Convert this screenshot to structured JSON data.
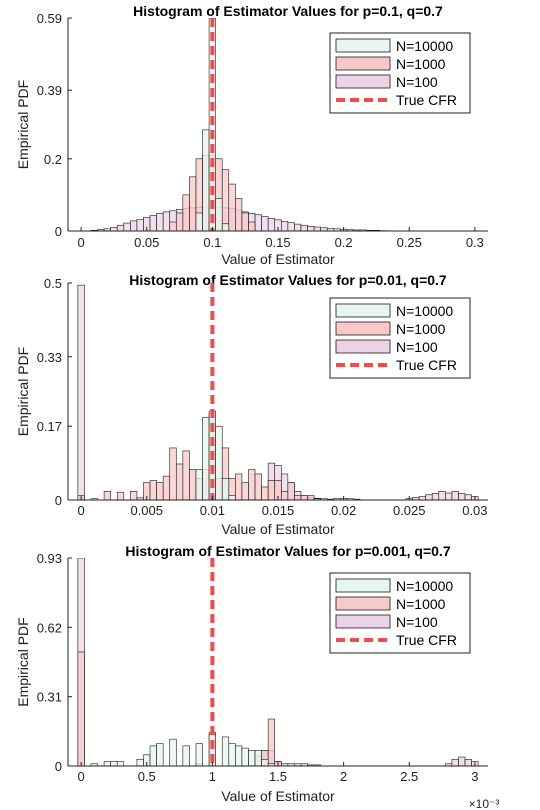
{
  "figure": {
    "background": "#ffffff",
    "colors": {
      "n10000": "#e6f5ef",
      "n1000": "#f8c9c9",
      "n100": "#ecd4e6",
      "true_cfr": "#f24b4b",
      "edge": "#1a1a1a"
    }
  },
  "chart_data": [
    {
      "type": "bar",
      "title": "Histogram of Estimator Values for p=0.1, q=0.7",
      "xlabel": "Value of Estimator",
      "ylabel": "Empirical PDF",
      "xlim": [
        -0.01,
        0.31
      ],
      "ylim": [
        0,
        0.59
      ],
      "x_ticks": [
        0,
        0.05,
        0.1,
        0.15,
        0.2,
        0.25,
        0.3
      ],
      "x_tick_labels": [
        "0",
        "0.05",
        "0.1",
        "0.15",
        "0.2",
        "0.25",
        "0.3"
      ],
      "y_ticks": [
        0,
        0.2,
        0.39,
        0.59
      ],
      "y_tick_labels": [
        "0",
        "0.2",
        "0.39",
        "0.59"
      ],
      "exponent_label": "",
      "legend_position": "top-right",
      "true_cfr": 0.1,
      "series": [
        {
          "name": "N=100",
          "bin_width": 0.005,
          "bins": [
            [
              0.01,
              0.002
            ],
            [
              0.015,
              0.004
            ],
            [
              0.02,
              0.006
            ],
            [
              0.025,
              0.01
            ],
            [
              0.03,
              0.016
            ],
            [
              0.035,
              0.022
            ],
            [
              0.04,
              0.028
            ],
            [
              0.045,
              0.032
            ],
            [
              0.05,
              0.038
            ],
            [
              0.055,
              0.043
            ],
            [
              0.06,
              0.049
            ],
            [
              0.065,
              0.053
            ],
            [
              0.07,
              0.056
            ],
            [
              0.075,
              0.06
            ],
            [
              0.08,
              0.062
            ],
            [
              0.085,
              0.064
            ],
            [
              0.09,
              0.066
            ],
            [
              0.095,
              0.067
            ],
            [
              0.1,
              0.069
            ],
            [
              0.105,
              0.066
            ],
            [
              0.11,
              0.064
            ],
            [
              0.115,
              0.062
            ],
            [
              0.12,
              0.058
            ],
            [
              0.125,
              0.053
            ],
            [
              0.13,
              0.049
            ],
            [
              0.135,
              0.045
            ],
            [
              0.14,
              0.04
            ],
            [
              0.145,
              0.035
            ],
            [
              0.15,
              0.031
            ],
            [
              0.155,
              0.027
            ],
            [
              0.16,
              0.023
            ],
            [
              0.165,
              0.019
            ],
            [
              0.17,
              0.016
            ],
            [
              0.175,
              0.013
            ],
            [
              0.18,
              0.011
            ],
            [
              0.185,
              0.009
            ],
            [
              0.19,
              0.007
            ],
            [
              0.195,
              0.006
            ],
            [
              0.2,
              0.005
            ],
            [
              0.205,
              0.004
            ],
            [
              0.21,
              0.003
            ],
            [
              0.215,
              0.003
            ],
            [
              0.22,
              0.002
            ],
            [
              0.225,
              0.002
            ],
            [
              0.23,
              0.001
            ]
          ]
        },
        {
          "name": "N=1000",
          "bin_width": 0.005,
          "bins": [
            [
              0.07,
              0.025
            ],
            [
              0.075,
              0.05
            ],
            [
              0.08,
              0.1
            ],
            [
              0.085,
              0.15
            ],
            [
              0.09,
              0.2
            ],
            [
              0.095,
              0.21
            ],
            [
              0.1,
              0.21
            ],
            [
              0.105,
              0.2
            ],
            [
              0.11,
              0.17
            ],
            [
              0.115,
              0.13
            ],
            [
              0.12,
              0.09
            ],
            [
              0.125,
              0.05
            ],
            [
              0.13,
              0.025
            ]
          ]
        },
        {
          "name": "N=10000",
          "bin_width": 0.005,
          "bins": [
            [
              0.09,
              0.05
            ],
            [
              0.095,
              0.28
            ],
            [
              0.1,
              0.59
            ],
            [
              0.105,
              0.09
            ],
            [
              0.11,
              0.02
            ]
          ]
        }
      ],
      "legend": [
        "N=10000",
        "N=1000",
        "N=100",
        "True CFR"
      ]
    },
    {
      "type": "bar",
      "title": "Histogram of Estimator Values for p=0.01, q=0.7",
      "xlabel": "Value of Estimator",
      "ylabel": "Empirical PDF",
      "xlim": [
        -0.001,
        0.031
      ],
      "ylim": [
        0,
        0.5
      ],
      "x_ticks": [
        0,
        0.005,
        0.01,
        0.015,
        0.02,
        0.025,
        0.03
      ],
      "x_tick_labels": [
        "0",
        "0.005",
        "0.01",
        "0.015",
        "0.02",
        "0.025",
        "0.03"
      ],
      "y_ticks": [
        0,
        0.17,
        0.33,
        0.5
      ],
      "y_tick_labels": [
        "0",
        "0.17",
        "0.33",
        "0.5"
      ],
      "exponent_label": "",
      "legend_position": "top-right",
      "true_cfr": 0.01,
      "series": [
        {
          "name": "N=100",
          "bin_width": 0.0005,
          "bins": [
            [
              0,
              0.495
            ],
            [
              0.01,
              0.18
            ],
            [
              0.0145,
              0.085
            ],
            [
              0.015,
              0.08
            ],
            [
              0.0155,
              0.06
            ],
            [
              0.016,
              0.04
            ],
            [
              0.0165,
              0.02
            ],
            [
              0.017,
              0.01
            ],
            [
              0.0175,
              0.006
            ],
            [
              0.018,
              0.004
            ],
            [
              0.0185,
              0.003
            ],
            [
              0.019,
              0.002
            ],
            [
              0.0195,
              0.004
            ],
            [
              0.02,
              0.004
            ],
            [
              0.0205,
              0.003
            ],
            [
              0.021,
              0.002
            ],
            [
              0.025,
              0.003
            ],
            [
              0.0255,
              0.006
            ],
            [
              0.026,
              0.008
            ],
            [
              0.0265,
              0.012
            ],
            [
              0.027,
              0.015
            ],
            [
              0.0275,
              0.02
            ],
            [
              0.028,
              0.016
            ],
            [
              0.0285,
              0.02
            ],
            [
              0.029,
              0.015
            ],
            [
              0.0295,
              0.012
            ],
            [
              0.03,
              0.008
            ]
          ]
        },
        {
          "name": "N=1000",
          "bin_width": 0.0005,
          "bins": [
            [
              0,
              0.01
            ],
            [
              0.001,
              0.003
            ],
            [
              0.002,
              0.02
            ],
            [
              0.003,
              0.018
            ],
            [
              0.004,
              0.02
            ],
            [
              0.0045,
              0.005
            ],
            [
              0.005,
              0.04
            ],
            [
              0.0055,
              0.045
            ],
            [
              0.006,
              0.04
            ],
            [
              0.0065,
              0.055
            ],
            [
              0.007,
              0.12
            ],
            [
              0.0075,
              0.083
            ],
            [
              0.008,
              0.113
            ],
            [
              0.0085,
              0.07
            ],
            [
              0.009,
              0.05
            ],
            [
              0.0095,
              0.07
            ],
            [
              0.01,
              0.2
            ],
            [
              0.0105,
              0.05
            ],
            [
              0.011,
              0.12
            ],
            [
              0.0115,
              0.05
            ],
            [
              0.012,
              0.06
            ],
            [
              0.0125,
              0.04
            ],
            [
              0.013,
              0.07
            ],
            [
              0.0135,
              0.06
            ],
            [
              0.014,
              0.03
            ],
            [
              0.0145,
              0.045
            ],
            [
              0.015,
              0.045
            ],
            [
              0.0155,
              0.02
            ],
            [
              0.016,
              0.04
            ],
            [
              0.0165,
              0.01
            ],
            [
              0.017,
              0.01
            ],
            [
              0.0175,
              0.01
            ],
            [
              0.018,
              0.003
            ]
          ]
        },
        {
          "name": "N=10000",
          "bin_width": 0.0005,
          "bins": [
            [
              0.009,
              0.07
            ],
            [
              0.0095,
              0.19
            ],
            [
              0.01,
              0.205
            ],
            [
              0.0105,
              0.17
            ],
            [
              0.011,
              0.05
            ],
            [
              0.0115,
              0.01
            ]
          ]
        }
      ],
      "legend": [
        "N=10000",
        "N=1000",
        "N=100",
        "True CFR"
      ]
    },
    {
      "type": "bar",
      "title": "Histogram of Estimator Values for p=0.001, q=0.7",
      "xlabel": "Value of Estimator",
      "ylabel": "Empirical PDF",
      "xlim": [
        -0.0001,
        0.0031
      ],
      "ylim": [
        0,
        0.93
      ],
      "x_ticks": [
        0,
        0.0005,
        0.001,
        0.0015,
        0.002,
        0.0025,
        0.003
      ],
      "x_tick_labels": [
        "0",
        "0.5",
        "1",
        "1.5",
        "2",
        "2.5",
        "3"
      ],
      "y_ticks": [
        0,
        0.31,
        0.62,
        0.93
      ],
      "y_tick_labels": [
        "0",
        "0.31",
        "0.62",
        "0.93"
      ],
      "exponent_label": "×10⁻³",
      "legend_position": "top-right",
      "true_cfr": 0.001,
      "series": [
        {
          "name": "N=100",
          "bin_width": 5e-05,
          "bins": [
            [
              0,
              0.93
            ],
            [
              0.0014,
              0.07
            ],
            [
              0.00145,
              0.07
            ],
            [
              0.0015,
              0.02
            ],
            [
              0.00155,
              0.01
            ],
            [
              0.0016,
              0.01
            ],
            [
              0.00165,
              0.01
            ],
            [
              0.0017,
              0.01
            ],
            [
              0.00175,
              0.005
            ],
            [
              0.0018,
              0.005
            ],
            [
              0.0028,
              0.01
            ],
            [
              0.00285,
              0.03
            ],
            [
              0.0029,
              0.04
            ],
            [
              0.00295,
              0.03
            ],
            [
              0.003,
              0.02
            ]
          ]
        },
        {
          "name": "N=1000",
          "bin_width": 5e-05,
          "bins": [
            [
              0,
              0.51
            ],
            [
              0.0009,
              0.01
            ],
            [
              0.001,
              0.15
            ],
            [
              0.00135,
              0.045
            ],
            [
              0.0014,
              0.07
            ],
            [
              0.00145,
              0.21
            ],
            [
              0.0015,
              0.02
            ]
          ]
        },
        {
          "name": "N=10000",
          "bin_width": 5e-05,
          "bins": [
            [
              0.0001,
              0.01
            ],
            [
              0.0002,
              0.02
            ],
            [
              0.00025,
              0.02
            ],
            [
              0.0003,
              0.02
            ],
            [
              0.00045,
              0.03
            ],
            [
              0.0005,
              0.05
            ],
            [
              0.00055,
              0.09
            ],
            [
              0.0006,
              0.1
            ],
            [
              0.0007,
              0.12
            ],
            [
              0.0008,
              0.09
            ],
            [
              0.0009,
              0.1
            ],
            [
              0.001,
              0.14
            ],
            [
              0.0011,
              0.13
            ],
            [
              0.00115,
              0.1
            ],
            [
              0.0012,
              0.09
            ],
            [
              0.00125,
              0.08
            ],
            [
              0.0013,
              0.07
            ],
            [
              0.00135,
              0.07
            ],
            [
              0.0014,
              0.03
            ],
            [
              0.00145,
              0.01
            ]
          ]
        }
      ],
      "legend": [
        "N=10000",
        "N=1000",
        "N=100",
        "True CFR"
      ]
    }
  ]
}
